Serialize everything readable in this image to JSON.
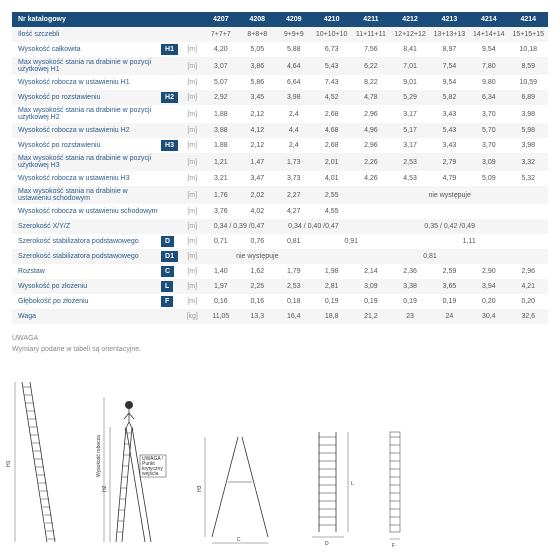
{
  "header": {
    "label": "Nr katalogowy",
    "cols": [
      "4207",
      "4208",
      "4209",
      "4210",
      "4211",
      "4212",
      "4213",
      "4214",
      "4214"
    ]
  },
  "rows": [
    {
      "l": "Ilość szczebli",
      "b": "",
      "u": "",
      "v": [
        "7+7+7",
        "8+8+8",
        "9+9+9",
        "10+10+10",
        "11+11+11",
        "12+12+12",
        "13+13+13",
        "14+14+14",
        "15+15+15"
      ]
    },
    {
      "l": "Wysokość całkowita",
      "b": "H1",
      "u": "[m]",
      "v": [
        "4,20",
        "5,05",
        "5,88",
        "6,73",
        "7,56",
        "8,41",
        "8,97",
        "9,54",
        "10,18"
      ]
    },
    {
      "l": "Max wysokość stania na drabinie w pozycji użytkowej H1",
      "b": "",
      "u": "[m]",
      "v": [
        "3,07",
        "3,86",
        "4,64",
        "5,43",
        "6,22",
        "7,01",
        "7,54",
        "7,80",
        "8,59"
      ]
    },
    {
      "l": "Wysokość robocza w ustawieniu H1",
      "b": "",
      "u": "[m]",
      "v": [
        "5,07",
        "5,86",
        "6,64",
        "7,43",
        "8,22",
        "9,01",
        "9,54",
        "9,80",
        "10,59"
      ]
    },
    {
      "l": "Wysokość po rozstawieniu",
      "b": "H2",
      "u": "[m]",
      "v": [
        "2,92",
        "3,45",
        "3,98",
        "4,52",
        "4,78",
        "5,29",
        "5,82",
        "6,34",
        "6,89"
      ]
    },
    {
      "l": "Max wysokość stania na drabinie w pozycji użytkowej H2",
      "b": "",
      "u": "[m]",
      "v": [
        "1,88",
        "2,12",
        "2,4",
        "2,68",
        "2,96",
        "3,17",
        "3,43",
        "3,70",
        "3,98"
      ]
    },
    {
      "l": "Wysokość robocza w ustawieniu H2",
      "b": "",
      "u": "[m]",
      "v": [
        "3,88",
        "4,12",
        "4,4",
        "4,68",
        "4,96",
        "5,17",
        "5,43",
        "5,70",
        "5,98"
      ]
    },
    {
      "l": "Wysokość po rozstawieniu",
      "b": "H3",
      "u": "[m]",
      "v": [
        "1,88",
        "2,12",
        "2,4",
        "2,68",
        "2,96",
        "3,17",
        "3,43",
        "3,70",
        "3,98"
      ]
    },
    {
      "l": "Max wysokość stania na drabinie w pozycji użytkowej H3",
      "b": "",
      "u": "[m]",
      "v": [
        "1,21",
        "1,47",
        "1,73",
        "2,01",
        "2,26",
        "2,53",
        "2,79",
        "3,09",
        "3,32"
      ]
    },
    {
      "l": "Wysokość robocza w ustawieniu H3",
      "b": "",
      "u": "[m]",
      "v": [
        "3,21",
        "3,47",
        "3,73",
        "4,01",
        "4,26",
        "4,53",
        "4,79",
        "5,09",
        "5,32"
      ]
    },
    {
      "l": "Max wysokość stania na drabinie w ustawieniu schodowym",
      "b": "",
      "u": "[m]",
      "v": [
        "1,76",
        "2,02",
        "2,27",
        "2,55"
      ],
      "span": {
        "start": 4,
        "cols": 5,
        "text": "nie występuje"
      }
    },
    {
      "l": "Wysokość robocza w ustawieniu schodowym",
      "b": "",
      "u": "[m]",
      "v": [
        "3,76",
        "4,02",
        "4,27",
        "4,55"
      ],
      "span": {
        "start": 4,
        "cols": 5,
        "text": ""
      }
    },
    {
      "l": "Szerokość X/Y/Z",
      "b": "",
      "u": "[m]",
      "v": [],
      "spans": [
        {
          "cols": 2,
          "text": "0,34 / 0,39 /0,47"
        },
        {
          "cols": 2,
          "text": "0,34 / 0,40 /0,47"
        },
        {
          "cols": 5,
          "text": "0,35 / 0,42 /0,49"
        }
      ]
    },
    {
      "l": "Szerokość stabilizatora podstawowego",
      "b": "D",
      "u": "[m]",
      "v": [
        "0,71",
        "0,76",
        "0,81"
      ],
      "spans2": [
        {
          "cols": 2,
          "text": "0,91"
        },
        {
          "cols": 4,
          "text": "1,11"
        }
      ]
    },
    {
      "l": "Szerokość stabilizatora podstawowego",
      "b": "D1",
      "u": "[m]",
      "v": [],
      "spans": [
        {
          "cols": 3,
          "text": "nie występuje"
        },
        {
          "cols": 6,
          "text": "0,81"
        }
      ]
    },
    {
      "l": "Rozstaw",
      "b": "C",
      "u": "[m]",
      "v": [
        "1,40",
        "1,62",
        "1,79",
        "1,98",
        "2,14",
        "2,36",
        "2,59",
        "2,90",
        "2,96"
      ]
    },
    {
      "l": "Wysokość po złożeniu",
      "b": "L",
      "u": "[m]",
      "v": [
        "1,97",
        "2,25",
        "2,53",
        "2,81",
        "3,09",
        "3,38",
        "3,65",
        "3,94",
        "4,21"
      ]
    },
    {
      "l": "Głębokość po złożeniu",
      "b": "F",
      "u": "[m]",
      "v": [
        "0,16",
        "0,16",
        "0,18",
        "0,19",
        "0,19",
        "0,19",
        "0,19",
        "0,20",
        "0,20"
      ]
    },
    {
      "l": "Waga",
      "b": "",
      "u": "[kg]",
      "v": [
        "11,05",
        "13,3",
        "16,4",
        "18,8",
        "21,2",
        "23",
        "24",
        "30,4",
        "32,6"
      ]
    }
  ],
  "note": {
    "l1": "UWAGA",
    "l2": "Wymiary podane w tabeli są orientacyjne."
  },
  "diagram": {
    "h1": "H1",
    "h2": "Wysokość robocza",
    "h3": "H2",
    "h4": "H3",
    "c": "C",
    "d": "D",
    "l": "L",
    "f": "F",
    "note": "UWAGA !\nPunkt\nkrytyczny\nwejścia"
  }
}
